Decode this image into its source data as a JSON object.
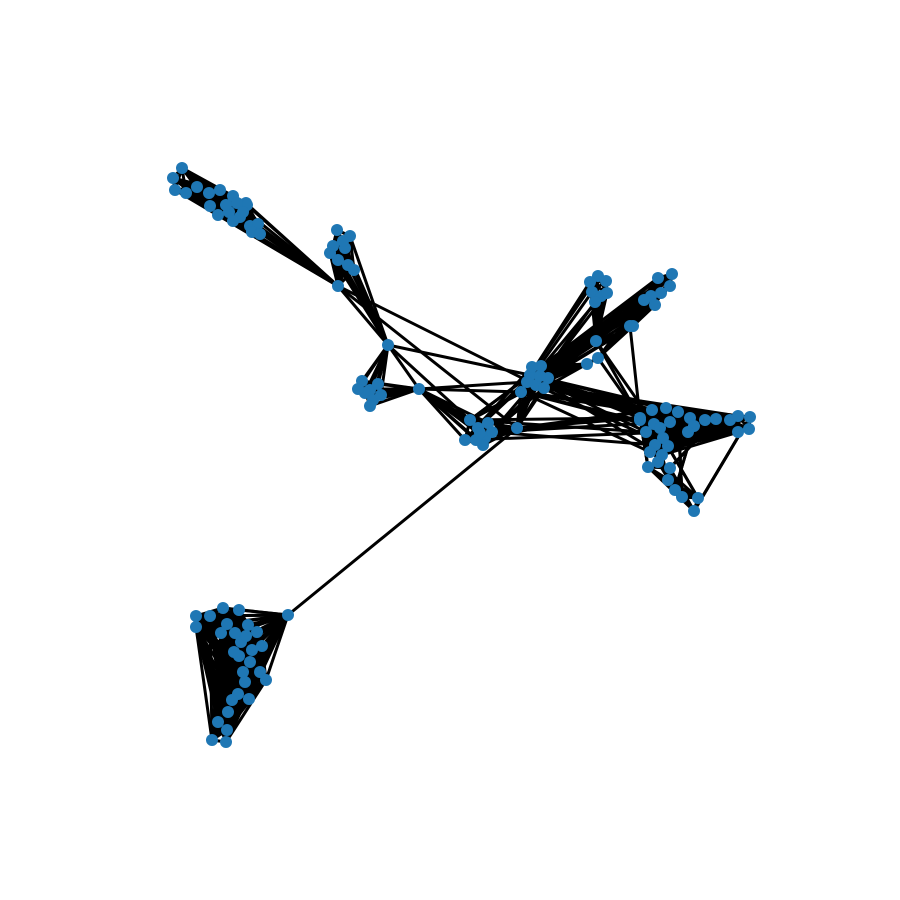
{
  "diagram": {
    "type": "network-graph",
    "edge_color": "#000000",
    "node_color": "#1f77b4",
    "background": "#ffffff"
  },
  "node_count": 180
}
